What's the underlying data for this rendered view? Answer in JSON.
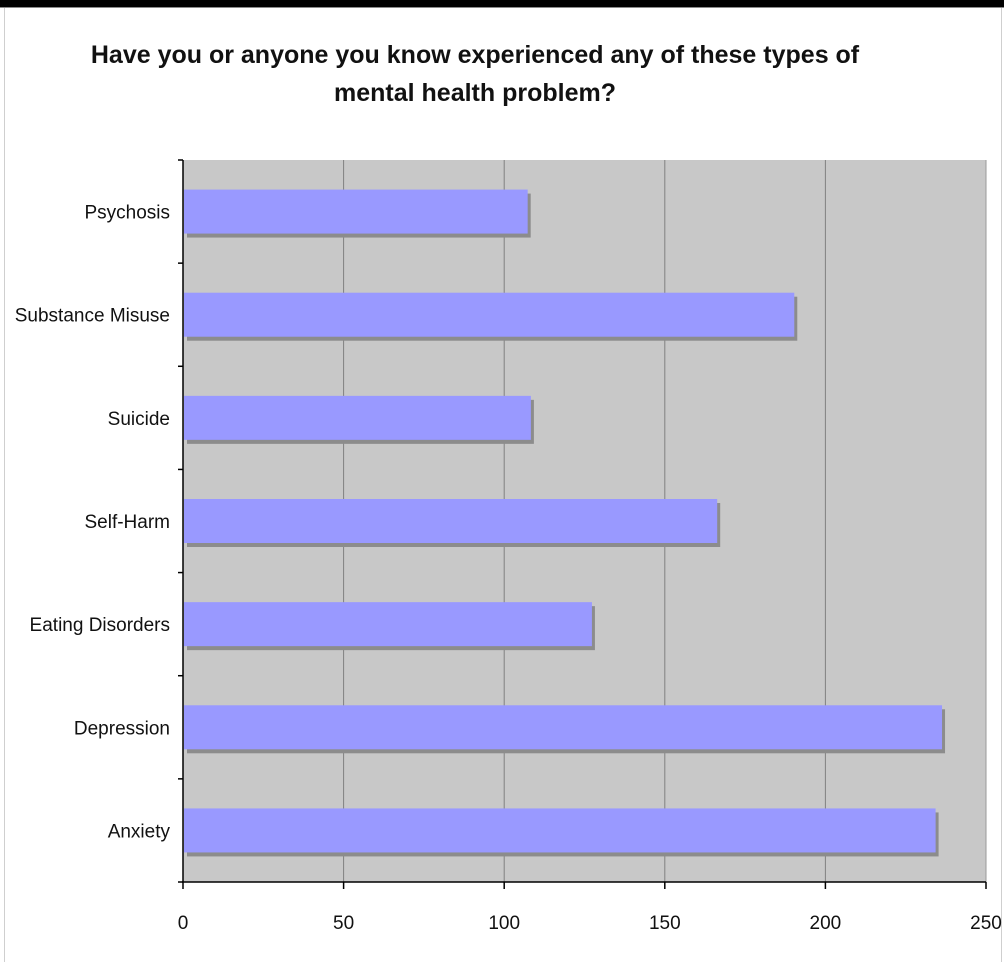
{
  "chart_data": {
    "type": "bar",
    "orientation": "horizontal",
    "title": "Have you or anyone you know experienced any of these types of\nmental health problem?",
    "categories": [
      "Psychosis",
      "Substance Misuse",
      "Suicide",
      "Self-Harm",
      "Eating Disorders",
      "Depression",
      "Anxiety"
    ],
    "values": [
      107,
      190,
      108,
      166,
      127,
      236,
      234
    ],
    "xlim": [
      0,
      250
    ],
    "x_ticks": [
      "0",
      "50",
      "100",
      "150",
      "200",
      "250"
    ],
    "grid": true,
    "legend": "none",
    "colors": {
      "bar": "#9999ff",
      "bar_shadow": "#8c8c8c",
      "plot_background": "#c8c8c8",
      "gridline": "#808080"
    }
  }
}
